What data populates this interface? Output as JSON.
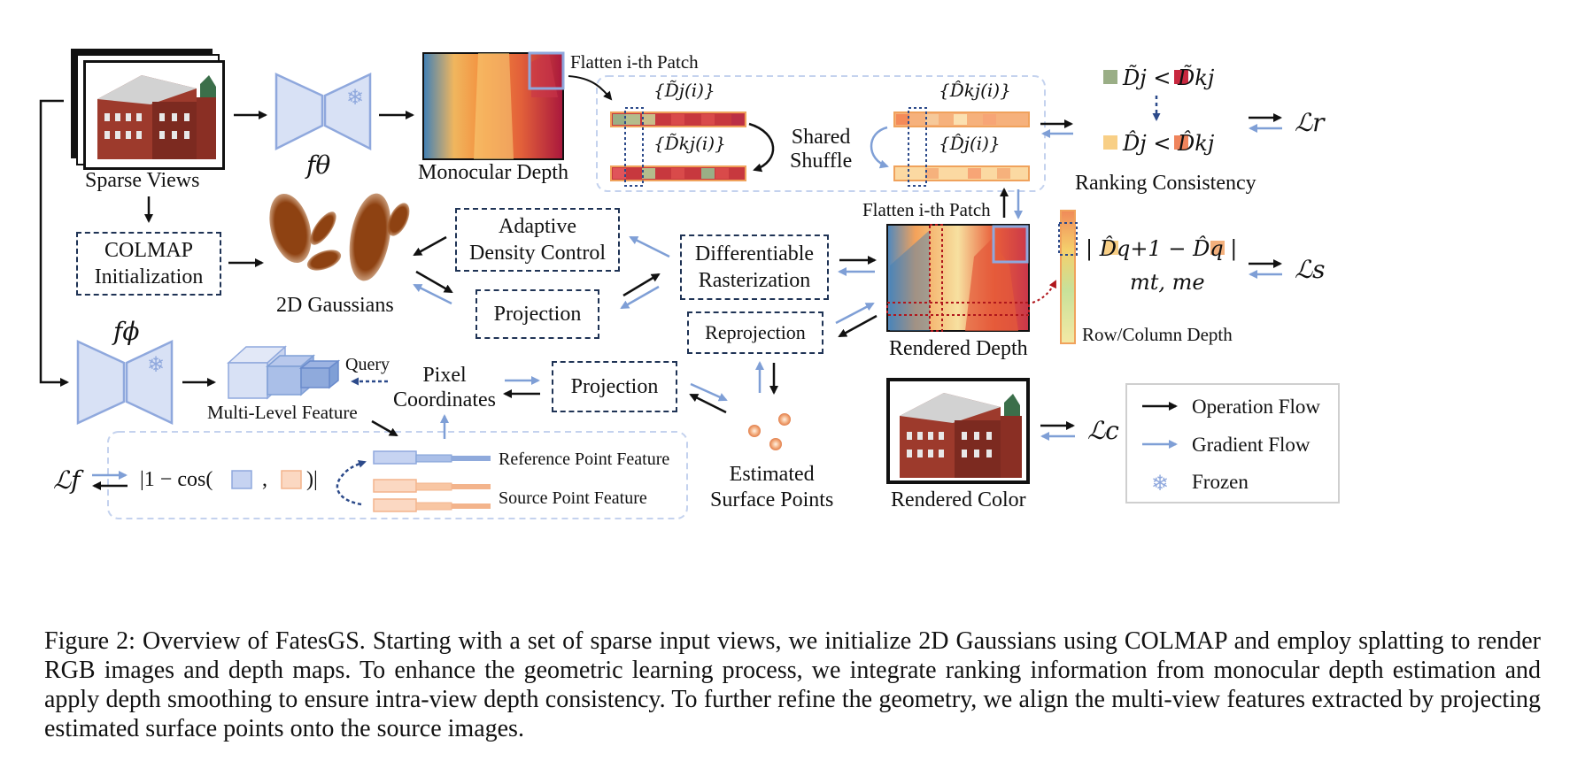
{
  "labels": {
    "sparse_views": "Sparse Views",
    "f_theta": "fθ",
    "monocular_depth": "Monocular Depth",
    "flatten_patch_top": "Flatten i-th Patch",
    "flatten_patch_mid": "Flatten i-th Patch",
    "d_tilde_j_set": "{D̃j(i)}",
    "d_tilde_kj_set": "{D̃kj(i)}",
    "d_hat_kj_set": "{D̂kj(i)}",
    "d_hat_j_set": "{D̂j(i)}",
    "shared_shuffle": "Shared\nShuffle",
    "rank_top": "D̃j < D̃kj",
    "rank_bottom": "D̂j < D̂kj",
    "ranking_consistency": "Ranking Consistency",
    "loss_r": "ℒr",
    "colmap": "COLMAP\nInitialization",
    "gaussians_2d": "2D Gaussians",
    "adaptive_density": "Adaptive\nDensity Control",
    "projection_mid": "Projection",
    "diff_raster": "Differentiable\nRasterization",
    "reprojection": "Reprojection",
    "rendered_depth": "Rendered Depth",
    "smooth_expr": "| D̂q+1 − D̂q |",
    "smooth_params": "mt, me",
    "row_col_depth": "Row/Column Depth",
    "loss_s": "ℒs",
    "f_phi": "fϕ",
    "query": "Query",
    "multi_level_feature": "Multi-Level Feature",
    "pixel_coordinates": "Pixel\nCoordinates",
    "projection_bottom": "Projection",
    "estimated_surface_points": "Estimated\nSurface Points",
    "loss_f": "ℒf",
    "cos_expr_a": "|1 − cos(",
    "cos_expr_b": ",",
    "cos_expr_c": ")|",
    "reference_point_feature": "Reference Point Feature",
    "source_point_feature": "Source Point Feature",
    "rendered_color": "Rendered Color",
    "loss_c": "ℒc"
  },
  "legend": {
    "operation_flow": "Operation Flow",
    "gradient_flow": "Gradient Flow",
    "frozen": "Frozen"
  },
  "caption": "Figure 2: Overview of FatesGS. Starting with a set of sparse input views, we initialize 2D Gaussians using COLMAP and employ splatting to render RGB images and depth maps. To enhance the geometric learning process, we integrate ranking information from monocular depth estimation and apply depth smoothing to ensure intra-view depth consistency. To further refine the geometry, we align the multi-view features extracted by projecting estimated surface points onto the source images.",
  "colors": {
    "operation": "#111111",
    "gradient": "#7f9fd6",
    "encoder": "#9fb4e4",
    "gaussian": "#8b3f12",
    "reference_feature": "#8fa8dd",
    "source_feature": "#f3b48c",
    "dashed_box": "#1f3355",
    "patch_green": "#9aae86",
    "patch_red": "#c8283f",
    "patch_yellow": "#f8cf86",
    "patch_orange": "#ef845c"
  },
  "icons": [
    "building-photo-icon",
    "encoder-icon",
    "snowflake-icon",
    "depth-map-icon",
    "gaussian-ellipse-icon",
    "feature-cube-icon",
    "surface-point-icon"
  ]
}
